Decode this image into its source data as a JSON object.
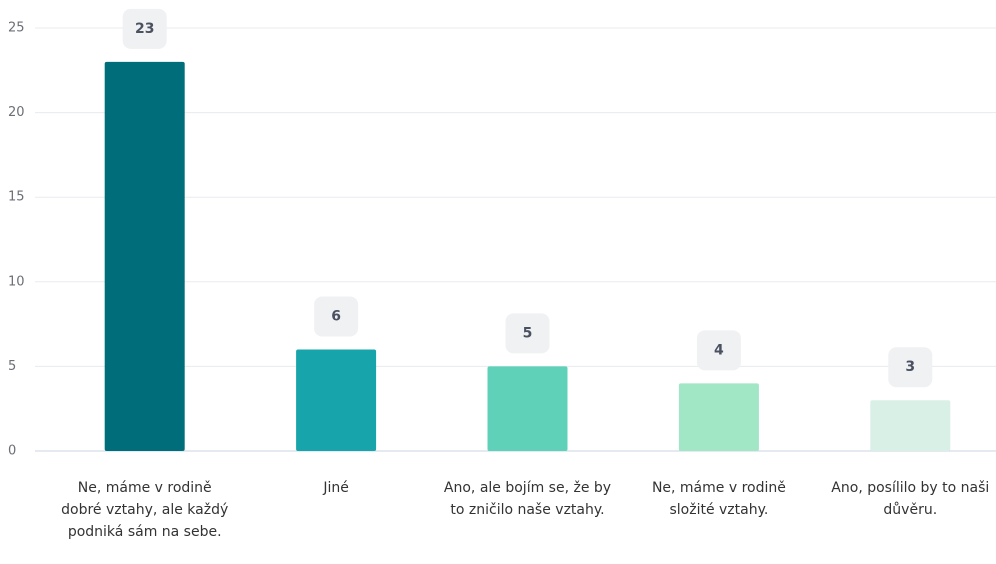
{
  "chart_data": {
    "type": "bar",
    "categories": [
      "Ne, máme v rodině dobré vztahy, ale každý podniká sám na sebe.",
      "Jiné",
      "Ano, ale bojím se, že by to zničilo naše vztahy.",
      "Ne, máme v rodině složité vztahy.",
      "Ano, posílilo by to naši důvěru."
    ],
    "values": [
      23,
      6,
      5,
      4,
      3
    ],
    "colors": [
      "#006e7a",
      "#17a4ab",
      "#5fd1b8",
      "#a1e6c5",
      "#d9f0e6"
    ],
    "ylim": [
      0,
      25
    ],
    "yticks": [
      0,
      5,
      10,
      15,
      20,
      25
    ],
    "grid": true
  }
}
